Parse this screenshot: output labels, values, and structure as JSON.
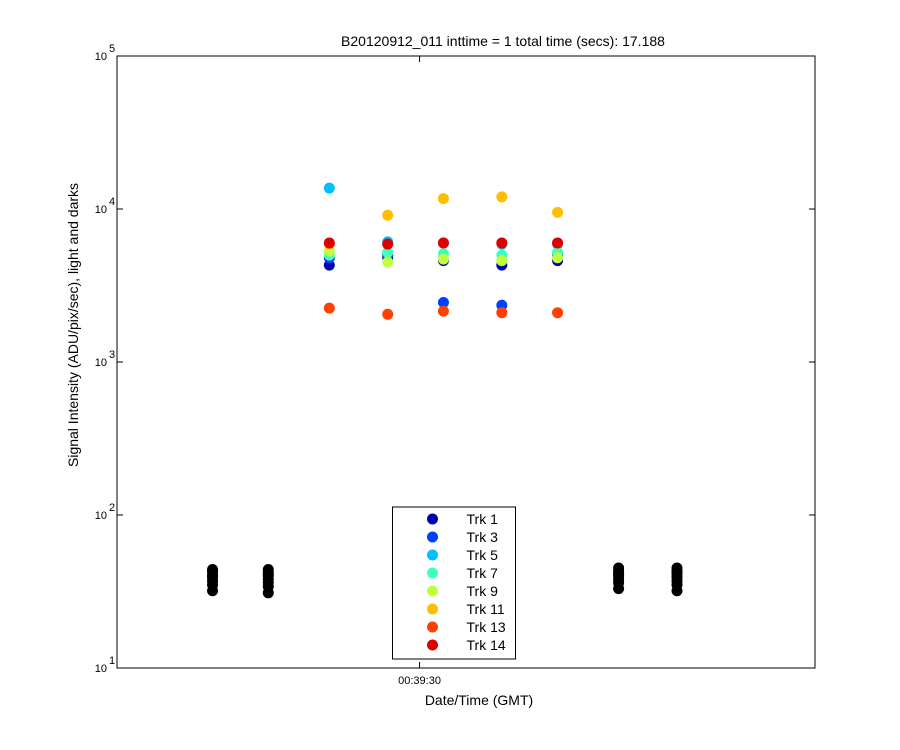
{
  "chart_data": {
    "type": "scatter",
    "title": "B20120912_011 inttime = 1 total time (secs): 17.188",
    "x_label": "Date/Time (GMT)",
    "y_label": "Signal Intensity (ADU/pix/sec), light and darks",
    "x": [
      2362.2,
      2364.3,
      2366.6,
      2368.8,
      2370.9,
      2373.1,
      2375.2,
      2377.5,
      2379.7
    ],
    "xlim": [
      2358.6,
      2384.9
    ],
    "xticks": [
      {
        "value": 2370,
        "label": "00:39:30"
      }
    ],
    "y_scale": "log",
    "ylim": [
      10,
      100000
    ],
    "yticks": [
      {
        "value": 10,
        "label": "10",
        "sup": "1"
      },
      {
        "value": 100,
        "label": "10",
        "sup": "2"
      },
      {
        "value": 1000,
        "label": "10",
        "sup": "3"
      },
      {
        "value": 10000,
        "label": "10",
        "sup": "4"
      },
      {
        "value": 100000,
        "label": "10",
        "sup": "5"
      }
    ],
    "dark_color": "#000000",
    "legend": "lower center",
    "series": [
      {
        "name": "Trk 1",
        "color": "#0000b0",
        "values": [
          null,
          null,
          4300,
          4800,
          4600,
          4300,
          4600,
          null,
          null
        ],
        "dark_values": [
          32,
          31,
          null,
          null,
          null,
          null,
          null,
          33,
          32
        ]
      },
      {
        "name": "Trk 3",
        "color": "#0040ff",
        "values": [
          null,
          null,
          4800,
          5000,
          2450,
          2350,
          5000,
          null,
          null
        ],
        "dark_values": [
          35,
          34,
          null,
          null,
          null,
          null,
          null,
          36,
          35
        ]
      },
      {
        "name": "Trk 5",
        "color": "#00bfff",
        "values": [
          null,
          null,
          13700,
          6100,
          6000,
          5900,
          5900,
          null,
          null
        ],
        "dark_values": [
          37,
          36,
          null,
          null,
          null,
          null,
          null,
          38,
          37
        ]
      },
      {
        "name": "Trk 7",
        "color": "#40ffbf",
        "values": [
          null,
          null,
          5000,
          5200,
          5100,
          5000,
          5200,
          null,
          null
        ],
        "dark_values": [
          39,
          38,
          null,
          null,
          null,
          null,
          null,
          40,
          39
        ]
      },
      {
        "name": "Trk 9",
        "color": "#bfff40",
        "values": [
          null,
          null,
          5300,
          4500,
          4700,
          4600,
          4800,
          null,
          null
        ],
        "dark_values": [
          40,
          40,
          null,
          null,
          null,
          null,
          null,
          41,
          41
        ]
      },
      {
        "name": "Trk 11",
        "color": "#ffbf00",
        "values": [
          null,
          null,
          5900,
          9100,
          11700,
          12000,
          9500,
          null,
          null
        ],
        "dark_values": [
          41,
          41,
          null,
          null,
          null,
          null,
          null,
          42,
          42
        ]
      },
      {
        "name": "Trk 13",
        "color": "#ff4000",
        "values": [
          null,
          null,
          2250,
          2050,
          2150,
          2100,
          2100,
          null,
          null
        ],
        "dark_values": [
          43,
          42,
          null,
          null,
          null,
          null,
          null,
          43,
          43
        ]
      },
      {
        "name": "Trk 14",
        "color": "#e00000",
        "values": [
          null,
          null,
          6000,
          5900,
          6000,
          6000,
          6000,
          null,
          null
        ],
        "dark_values": [
          44,
          44,
          null,
          null,
          null,
          null,
          null,
          45,
          45
        ]
      }
    ]
  }
}
